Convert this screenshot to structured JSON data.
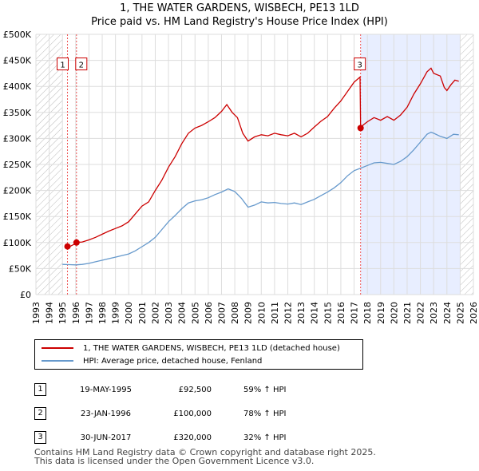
{
  "title_line1": "1, THE WATER GARDENS, WISBECH, PE13 1LD",
  "title_line2": "Price paid vs. HM Land Registry's House Price Index (HPI)",
  "chart_data": {
    "type": "line",
    "title": "1, THE WATER GARDENS, WISBECH, PE13 1LD — Price paid vs. HM Land Registry's House Price Index (HPI)",
    "xlabel": "",
    "ylabel": "",
    "xlim": [
      1993,
      2026
    ],
    "ylim": [
      0,
      500000
    ],
    "x_ticks": [
      "1993",
      "1994",
      "1995",
      "1996",
      "1997",
      "1998",
      "1999",
      "2000",
      "2001",
      "2002",
      "2003",
      "2004",
      "2005",
      "2006",
      "2007",
      "2008",
      "2009",
      "2010",
      "2011",
      "2012",
      "2013",
      "2014",
      "2015",
      "2016",
      "2017",
      "2018",
      "2019",
      "2020",
      "2021",
      "2022",
      "2023",
      "2024",
      "2025",
      "2026"
    ],
    "y_ticks": [
      {
        "value": 0,
        "label": "£0"
      },
      {
        "value": 50000,
        "label": "£50K"
      },
      {
        "value": 100000,
        "label": "£100K"
      },
      {
        "value": 150000,
        "label": "£150K"
      },
      {
        "value": 200000,
        "label": "£200K"
      },
      {
        "value": 250000,
        "label": "£250K"
      },
      {
        "value": 300000,
        "label": "£300K"
      },
      {
        "value": 350000,
        "label": "£350K"
      },
      {
        "value": 400000,
        "label": "£400K"
      },
      {
        "value": 450000,
        "label": "£450K"
      },
      {
        "value": 500000,
        "label": "£500K"
      }
    ],
    "grid": true,
    "hatched_regions": [
      [
        1993,
        1995.0
      ],
      [
        2025.0,
        2026
      ]
    ],
    "shaded_region": [
      2017.5,
      2025.0
    ],
    "series": [
      {
        "name": "1, THE WATER GARDENS, WISBECH, PE13 1LD (detached house)",
        "color": "#cc0000",
        "points": [
          [
            1995.38,
            92500
          ],
          [
            1995.6,
            93000
          ],
          [
            1995.9,
            97000
          ],
          [
            1996.06,
            100000
          ],
          [
            1996.5,
            101000
          ],
          [
            1997,
            105000
          ],
          [
            1997.5,
            110000
          ],
          [
            1998,
            116000
          ],
          [
            1998.5,
            122000
          ],
          [
            1999,
            127000
          ],
          [
            1999.5,
            132000
          ],
          [
            2000,
            140000
          ],
          [
            2000.5,
            155000
          ],
          [
            2001,
            170000
          ],
          [
            2001.5,
            178000
          ],
          [
            2002,
            200000
          ],
          [
            2002.5,
            220000
          ],
          [
            2003,
            245000
          ],
          [
            2003.5,
            265000
          ],
          [
            2004,
            290000
          ],
          [
            2004.5,
            310000
          ],
          [
            2005,
            320000
          ],
          [
            2005.5,
            325000
          ],
          [
            2006,
            332000
          ],
          [
            2006.5,
            340000
          ],
          [
            2007,
            352000
          ],
          [
            2007.4,
            365000
          ],
          [
            2007.8,
            350000
          ],
          [
            2008.2,
            340000
          ],
          [
            2008.6,
            310000
          ],
          [
            2009,
            295000
          ],
          [
            2009.5,
            303000
          ],
          [
            2010,
            307000
          ],
          [
            2010.5,
            305000
          ],
          [
            2011,
            310000
          ],
          [
            2011.5,
            307000
          ],
          [
            2012,
            305000
          ],
          [
            2012.5,
            310000
          ],
          [
            2013,
            303000
          ],
          [
            2013.5,
            310000
          ],
          [
            2014,
            322000
          ],
          [
            2014.5,
            333000
          ],
          [
            2015,
            342000
          ],
          [
            2015.5,
            358000
          ],
          [
            2016,
            372000
          ],
          [
            2016.5,
            390000
          ],
          [
            2017,
            408000
          ],
          [
            2017.45,
            418000
          ],
          [
            2017.49,
            320000
          ],
          [
            2017.7,
            326000
          ],
          [
            2018,
            332000
          ],
          [
            2018.5,
            340000
          ],
          [
            2019,
            335000
          ],
          [
            2019.5,
            342000
          ],
          [
            2020,
            335000
          ],
          [
            2020.5,
            345000
          ],
          [
            2021,
            360000
          ],
          [
            2021.5,
            385000
          ],
          [
            2022,
            405000
          ],
          [
            2022.5,
            428000
          ],
          [
            2022.8,
            435000
          ],
          [
            2023,
            425000
          ],
          [
            2023.5,
            420000
          ],
          [
            2023.8,
            398000
          ],
          [
            2024,
            392000
          ],
          [
            2024.3,
            403000
          ],
          [
            2024.6,
            412000
          ],
          [
            2024.9,
            410000
          ]
        ],
        "sales": [
          {
            "id": 1,
            "x": 1995.38,
            "y": 92500
          },
          {
            "id": 2,
            "x": 1996.06,
            "y": 100000
          },
          {
            "id": 3,
            "x": 2017.49,
            "y": 320000
          }
        ]
      },
      {
        "name": "HPI: Average price, detached house, Fenland",
        "color": "#6699cc",
        "points": [
          [
            1995,
            58000
          ],
          [
            1995.5,
            57500
          ],
          [
            1996,
            57000
          ],
          [
            1996.5,
            58000
          ],
          [
            1997,
            60000
          ],
          [
            1997.5,
            63000
          ],
          [
            1998,
            66000
          ],
          [
            1998.5,
            69000
          ],
          [
            1999,
            72000
          ],
          [
            1999.5,
            75000
          ],
          [
            2000,
            78000
          ],
          [
            2000.5,
            84000
          ],
          [
            2001,
            92000
          ],
          [
            2001.5,
            100000
          ],
          [
            2002,
            110000
          ],
          [
            2002.5,
            125000
          ],
          [
            2003,
            140000
          ],
          [
            2003.5,
            152000
          ],
          [
            2004,
            165000
          ],
          [
            2004.5,
            176000
          ],
          [
            2005,
            180000
          ],
          [
            2005.5,
            182000
          ],
          [
            2006,
            186000
          ],
          [
            2006.5,
            192000
          ],
          [
            2007,
            197000
          ],
          [
            2007.5,
            203000
          ],
          [
            2008,
            198000
          ],
          [
            2008.5,
            185000
          ],
          [
            2009,
            168000
          ],
          [
            2009.5,
            172000
          ],
          [
            2010,
            178000
          ],
          [
            2010.5,
            176000
          ],
          [
            2011,
            177000
          ],
          [
            2011.5,
            175000
          ],
          [
            2012,
            174000
          ],
          [
            2012.5,
            176000
          ],
          [
            2013,
            173000
          ],
          [
            2013.5,
            178000
          ],
          [
            2014,
            183000
          ],
          [
            2014.5,
            190000
          ],
          [
            2015,
            197000
          ],
          [
            2015.5,
            205000
          ],
          [
            2016,
            215000
          ],
          [
            2016.5,
            228000
          ],
          [
            2017,
            238000
          ],
          [
            2017.5,
            243000
          ],
          [
            2018,
            248000
          ],
          [
            2018.5,
            253000
          ],
          [
            2019,
            254000
          ],
          [
            2019.5,
            252000
          ],
          [
            2020,
            250000
          ],
          [
            2020.5,
            256000
          ],
          [
            2021,
            265000
          ],
          [
            2021.5,
            278000
          ],
          [
            2022,
            293000
          ],
          [
            2022.5,
            308000
          ],
          [
            2022.8,
            312000
          ],
          [
            2023,
            310000
          ],
          [
            2023.5,
            304000
          ],
          [
            2024,
            300000
          ],
          [
            2024.5,
            308000
          ],
          [
            2024.9,
            307000
          ]
        ]
      }
    ],
    "annotations": [
      {
        "label": "1",
        "x": 1995.38,
        "y": 450000
      },
      {
        "label": "2",
        "x": 1996.06,
        "y": 450000
      },
      {
        "label": "3",
        "x": 2017.49,
        "y": 450000
      }
    ]
  },
  "legend": {
    "red_label": "1, THE WATER GARDENS, WISBECH, PE13 1LD (detached house)",
    "blue_label": "HPI: Average price, detached house, Fenland"
  },
  "transactions": [
    {
      "num": "1",
      "date": "19-MAY-1995",
      "price": "£92,500",
      "hpi": "59% ↑ HPI"
    },
    {
      "num": "2",
      "date": "23-JAN-1996",
      "price": "£100,000",
      "hpi": "78% ↑ HPI"
    },
    {
      "num": "3",
      "date": "30-JUN-2017",
      "price": "£320,000",
      "hpi": "32% ↑ HPI"
    }
  ],
  "footer_line1": "Contains HM Land Registry data © Crown copyright and database right 2025.",
  "footer_line2": "This data is licensed under the Open Government Licence v3.0."
}
